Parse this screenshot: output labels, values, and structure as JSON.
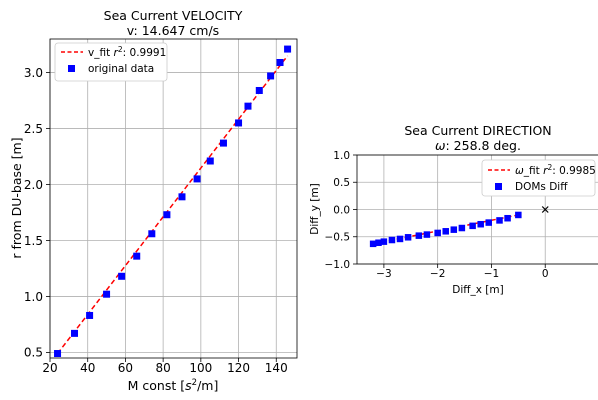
{
  "chart_data": [
    {
      "type": "scatter",
      "title": "Sea Current VELOCITY",
      "subtitle": "v: 14.647 cm/s",
      "xlabel": "M const [s²/m]",
      "ylabel": "r from DU-base [m]",
      "xlim": [
        20,
        151
      ],
      "ylim": [
        0.45,
        3.3
      ],
      "xticks": [
        "20",
        "40",
        "60",
        "80",
        "100",
        "120",
        "140"
      ],
      "xtick_values": [
        20,
        40,
        60,
        80,
        100,
        120,
        140
      ],
      "yticks": [
        "0.5",
        "1.0",
        "1.5",
        "2.0",
        "2.5",
        "3.0"
      ],
      "ytick_values": [
        0.5,
        1.0,
        1.5,
        2.0,
        2.5,
        3.0
      ],
      "grid": true,
      "legend_position": "top-left",
      "series": [
        {
          "name": "original data",
          "kind": "markers",
          "marker": "square",
          "color": "#0000ff",
          "x": [
            24,
            33,
            41,
            50,
            58,
            66,
            74,
            82,
            90,
            98,
            105,
            112,
            120,
            125,
            131,
            137,
            142,
            146
          ],
          "y": [
            0.49,
            0.67,
            0.83,
            1.02,
            1.18,
            1.36,
            1.56,
            1.73,
            1.89,
            2.05,
            2.21,
            2.37,
            2.55,
            2.7,
            2.84,
            2.97,
            3.09,
            3.21
          ]
        },
        {
          "name": "v_fit r²: 0.9991",
          "name_main": "v_fit ",
          "name_sup": "r",
          "name_sup_exp": "2",
          "name_rest": ": 0.9991",
          "kind": "line",
          "style": "dashed",
          "color": "#ff0000",
          "x": [
            24,
            146
          ],
          "y": [
            0.49,
            3.15
          ]
        }
      ]
    },
    {
      "type": "scatter",
      "title": "Sea Current DIRECTION",
      "subtitle": "ω: 258.8 deg.",
      "xlabel": "Diff_x [m]",
      "ylabel": "Diff_y [m]",
      "xlim": [
        -3.5,
        1.0
      ],
      "ylim": [
        -1.0,
        1.0
      ],
      "xticks": [
        "−3",
        "−2",
        "−1",
        "0"
      ],
      "xtick_values": [
        -3,
        -2,
        -1,
        0
      ],
      "yticks": [
        "−1.0",
        "−0.5",
        "0.0",
        "0.5",
        "1.0"
      ],
      "ytick_values": [
        -1.0,
        -0.5,
        0.0,
        0.5,
        1.0
      ],
      "grid": true,
      "legend_position": "top-right",
      "series": [
        {
          "name": "DOMs Diff",
          "kind": "markers",
          "marker": "square",
          "color": "#0000ff",
          "x": [
            -3.2,
            -3.1,
            -3.0,
            -2.85,
            -2.7,
            -2.55,
            -2.35,
            -2.2,
            -2.0,
            -1.85,
            -1.7,
            -1.55,
            -1.35,
            -1.2,
            -1.05,
            -0.85,
            -0.7,
            -0.5
          ],
          "y": [
            -0.63,
            -0.61,
            -0.59,
            -0.56,
            -0.54,
            -0.51,
            -0.48,
            -0.46,
            -0.43,
            -0.4,
            -0.37,
            -0.34,
            -0.3,
            -0.27,
            -0.24,
            -0.2,
            -0.16,
            -0.1
          ]
        },
        {
          "name": "ω_fit r²: 0.9985",
          "name_main": "ω_fit ",
          "name_sup": "r",
          "name_sup_exp": "2",
          "name_rest": ": 0.9985",
          "kind": "line",
          "style": "dashed",
          "color": "#ff0000",
          "x": [
            -3.2,
            -0.5
          ],
          "y": [
            -0.63,
            -0.1
          ]
        },
        {
          "name": "",
          "kind": "markers",
          "marker": "x",
          "color": "#000000",
          "x": [
            0
          ],
          "y": [
            0
          ]
        }
      ]
    }
  ]
}
